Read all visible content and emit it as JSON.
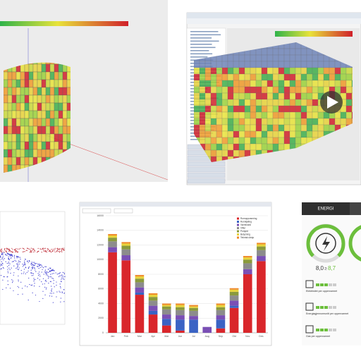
{
  "chart_data": {
    "type": "stacked-bar",
    "categories": [
      "Jan",
      "Feb",
      "Mar",
      "Apr",
      "Mai",
      "Jun",
      "Jul",
      "Aug",
      "Sep",
      "Okt",
      "Nov",
      "Des"
    ],
    "series": [
      {
        "name": "Romoppvarming",
        "color": "#d9262b",
        "values": [
          11000,
          9900,
          5200,
          2500,
          1000,
          300,
          0,
          0,
          600,
          3400,
          8000,
          9800
        ]
      },
      {
        "name": "Romkjøling",
        "color": "#3a63c4",
        "values": [
          0,
          0,
          300,
          500,
          900,
          1500,
          1800,
          0,
          1200,
          300,
          0,
          0
        ]
      },
      {
        "name": "Varmtvann",
        "color": "#7a4fb5",
        "values": [
          700,
          700,
          700,
          700,
          600,
          600,
          500,
          800,
          600,
          700,
          700,
          700
        ]
      },
      {
        "name": "Vifter",
        "color": "#8c8c8c",
        "values": [
          800,
          800,
          700,
          700,
          700,
          700,
          700,
          0,
          700,
          700,
          800,
          800
        ]
      },
      {
        "name": "Pumper",
        "color": "#8a9a3c",
        "values": [
          500,
          500,
          500,
          500,
          400,
          400,
          400,
          0,
          400,
          500,
          500,
          500
        ]
      },
      {
        "name": "Belysning",
        "color": "#e8d33a",
        "values": [
          300,
          300,
          300,
          300,
          200,
          300,
          200,
          0,
          300,
          300,
          300,
          300
        ]
      },
      {
        "name": "Teknisk utstyr",
        "color": "#ef8a2a",
        "values": [
          200,
          200,
          200,
          200,
          200,
          200,
          200,
          0,
          200,
          200,
          200,
          200
        ]
      }
    ],
    "ylim": [
      0,
      16000
    ],
    "yticks": [
      0,
      2000,
      4000,
      6000,
      8000,
      10000,
      12000,
      14000,
      16000
    ],
    "grid": true
  },
  "energy_panel": {
    "title": "ENERGI",
    "score": "8,0",
    "target": "8,7",
    "items": [
      "Elektrisitet per oppervarmet",
      "Energiagjennomsnitt per oppervarmet",
      "Gas per oppervarmet"
    ]
  }
}
